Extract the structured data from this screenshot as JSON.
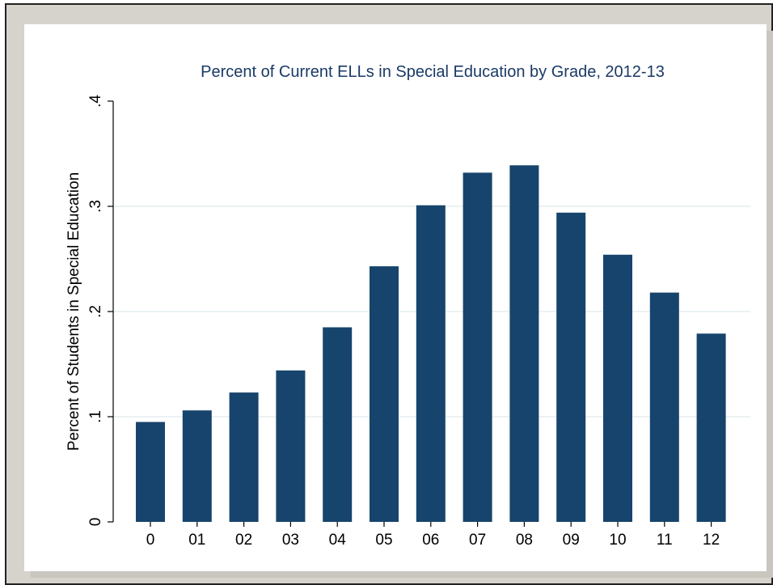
{
  "chart_data": {
    "type": "bar",
    "title": "Percent of Current ELLs in Special Education by Grade, 2012-13",
    "xlabel": "",
    "ylabel": "Percent of Students in Special Education",
    "categories": [
      "0",
      "01",
      "02",
      "03",
      "04",
      "05",
      "06",
      "07",
      "08",
      "09",
      "10",
      "11",
      "12"
    ],
    "values": [
      0.095,
      0.106,
      0.123,
      0.144,
      0.185,
      0.243,
      0.301,
      0.332,
      0.339,
      0.294,
      0.254,
      0.218,
      0.179
    ],
    "ylim": [
      0,
      0.4
    ],
    "yticks": [
      {
        "value": 0,
        "label": "0"
      },
      {
        "value": 0.1,
        "label": ".1"
      },
      {
        "value": 0.2,
        "label": ".2"
      },
      {
        "value": 0.3,
        "label": ".3"
      },
      {
        "value": 0.4,
        "label": ".4"
      }
    ],
    "grid": true,
    "colors": {
      "bar": "#17446c",
      "title": "#1a3a66",
      "grid": "#e6eef0"
    }
  }
}
